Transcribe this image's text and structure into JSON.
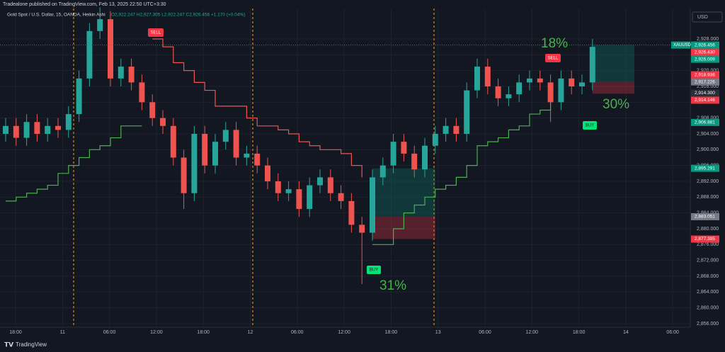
{
  "header": {
    "publisher": "Tradealone published on TradingView.com, Feb 13, 2025 22:50 UTC+3:30",
    "footer": "TradingView",
    "currency": "USD"
  },
  "chart_data": {
    "type": "candlestick",
    "symbol": "Gold Spot / U.S. Dollar, 15, OANDA, Heikin Ashi",
    "ohlc_text": "O2,922.247 H2,927.305 L2,922.247 C2,926.456 +1.170 (+0.04%)",
    "ylim": [
      2855.1,
      2935.7
    ],
    "yticks": [
      {
        "value": 2856,
        "label": "2,856.000"
      },
      {
        "value": 2860,
        "label": "2,860.000"
      },
      {
        "value": 2864,
        "label": "2,864.000"
      },
      {
        "value": 2868,
        "label": "2,868.000"
      },
      {
        "value": 2872,
        "label": "2,872.000"
      },
      {
        "value": 2876,
        "label": "2,876.000"
      },
      {
        "value": 2880,
        "label": "2,880.000"
      },
      {
        "value": 2884,
        "label": "2,884.000"
      },
      {
        "value": 2888,
        "label": "2,888.000"
      },
      {
        "value": 2892,
        "label": "2,892.000"
      },
      {
        "value": 2896,
        "label": "2,896.000"
      },
      {
        "value": 2900,
        "label": "2,900.000"
      },
      {
        "value": 2904,
        "label": "2,904.000"
      },
      {
        "value": 2908,
        "label": "2,908.000"
      },
      {
        "value": 2912,
        "label": "2,912.000"
      },
      {
        "value": 2916,
        "label": "2,916.000"
      },
      {
        "value": 2920,
        "label": "2,920.000"
      },
      {
        "value": 2924,
        "label": "2,924.000"
      },
      {
        "value": 2928,
        "label": "2,928.000"
      }
    ],
    "time_labels": [
      "18:00",
      "11",
      "06:00",
      "12:00",
      "18:00",
      "12",
      "06:00",
      "12:00",
      "18:00",
      "13",
      "06:00",
      "12:00",
      "18:00",
      "14",
      "06:00"
    ],
    "up_color": "#26a69a",
    "down_color": "#ef5350",
    "candles": [
      [
        2904,
        2908,
        2902,
        2906
      ],
      [
        2906,
        2908,
        2901,
        2903
      ],
      [
        2903,
        2909,
        2901,
        2907
      ],
      [
        2907,
        2909,
        2902,
        2904
      ],
      [
        2904,
        2908,
        2902,
        2906
      ],
      [
        2906,
        2908,
        2903,
        2905
      ],
      [
        2905,
        2911,
        2903,
        2909
      ],
      [
        2909,
        2920,
        2907,
        2918
      ],
      [
        2918,
        2932,
        2916,
        2930
      ],
      [
        2930,
        2936,
        2928,
        2933
      ],
      [
        2933,
        2935,
        2916,
        2918
      ],
      [
        2918,
        2923,
        2916,
        2921
      ],
      [
        2921,
        2923,
        2915,
        2917
      ],
      [
        2917,
        2919,
        2910,
        2912
      ],
      [
        2912,
        2914,
        2906,
        2908
      ],
      [
        2908,
        2910,
        2904,
        2906
      ],
      [
        2906,
        2908,
        2896,
        2898
      ],
      [
        2898,
        2900,
        2885,
        2889
      ],
      [
        2889,
        2906,
        2887,
        2904
      ],
      [
        2904,
        2906,
        2894,
        2896
      ],
      [
        2896,
        2904,
        2894,
        2902
      ],
      [
        2902,
        2907,
        2900,
        2905
      ],
      [
        2905,
        2907,
        2896,
        2898
      ],
      [
        2898,
        2901,
        2896,
        2899
      ],
      [
        2899,
        2901,
        2894,
        2896
      ],
      [
        2896,
        2898,
        2890,
        2892
      ],
      [
        2892,
        2894,
        2887,
        2889
      ],
      [
        2889,
        2892,
        2887,
        2890
      ],
      [
        2890,
        2892,
        2883,
        2885
      ],
      [
        2885,
        2893,
        2883,
        2891
      ],
      [
        2891,
        2895,
        2889,
        2893
      ],
      [
        2893,
        2895,
        2887,
        2889
      ],
      [
        2889,
        2891,
        2885,
        2887
      ],
      [
        2887,
        2889,
        2879,
        2881
      ],
      [
        2881,
        2883,
        2866,
        2879
      ],
      [
        2879,
        2895,
        2877,
        2893
      ],
      [
        2893,
        2898,
        2891,
        2896
      ],
      [
        2896,
        2904,
        2894,
        2902
      ],
      [
        2902,
        2904,
        2897,
        2899
      ],
      [
        2899,
        2901,
        2893,
        2895
      ],
      [
        2895,
        2903,
        2893,
        2901
      ],
      [
        2901,
        2906,
        2899,
        2904
      ],
      [
        2904,
        2908,
        2902,
        2906
      ],
      [
        2906,
        2908,
        2902,
        2904
      ],
      [
        2904,
        2917,
        2902,
        2915
      ],
      [
        2915,
        2923,
        2913,
        2921
      ],
      [
        2921,
        2923,
        2914,
        2916
      ],
      [
        2916,
        2918,
        2911,
        2913
      ],
      [
        2913,
        2916,
        2911,
        2914
      ],
      [
        2914,
        2919,
        2912,
        2917
      ],
      [
        2917,
        2920,
        2915,
        2918
      ],
      [
        2918,
        2920,
        2915,
        2917
      ],
      [
        2917,
        2919,
        2907,
        2912
      ],
      [
        2912,
        2920,
        2910,
        2918
      ],
      [
        2918,
        2920,
        2914,
        2916
      ],
      [
        2916,
        2919,
        2914,
        2917
      ],
      [
        2917,
        2928,
        2915,
        2926
      ]
    ],
    "series": [
      {
        "name": "trail-sell",
        "color": "#ef5350",
        "values": [
          null,
          null,
          null,
          null,
          null,
          null,
          null,
          null,
          null,
          null,
          null,
          null,
          null,
          null,
          2928,
          2926,
          2922,
          2920,
          2917,
          2915,
          2911,
          2911,
          2911,
          2908,
          2906,
          2906,
          2905,
          2904,
          2902,
          2901,
          2900,
          2900,
          2899,
          2896,
          2893,
          null,
          null,
          null,
          null,
          null,
          null,
          null,
          null,
          null,
          null,
          null,
          null,
          null,
          null,
          null,
          null,
          null,
          null,
          null,
          null,
          null,
          null
        ]
      },
      {
        "name": "trail-buy",
        "color": "#4caf50",
        "values": [
          2887,
          2888,
          2889,
          2890,
          2891,
          2894,
          2896,
          2898,
          2900,
          2901,
          2903,
          2906,
          2906,
          2906,
          null,
          null,
          null,
          null,
          null,
          null,
          null,
          null,
          null,
          null,
          null,
          null,
          null,
          null,
          null,
          null,
          null,
          null,
          null,
          null,
          null,
          2876,
          2876,
          2880,
          2884,
          2886,
          2888,
          2890,
          2891,
          2893,
          2896,
          2901,
          2902,
          2903,
          2905,
          2906,
          2909,
          2910,
          2912,
          null,
          null,
          null,
          null
        ]
      }
    ],
    "positions": [
      {
        "start": 35,
        "bars": 6,
        "entry": 2883.051,
        "target": 2895.291,
        "stop": 2877.395
      },
      {
        "start": 56,
        "bars": 4,
        "entry": 2917.226,
        "target": 2926.456,
        "stop": 2914.146
      }
    ],
    "price_labels": [
      {
        "value": 2926.456,
        "label": "2,926.456",
        "color": "#089981",
        "tag": "XAUUSD"
      },
      {
        "value": 2926.43,
        "label": "2,926.430",
        "color": "#f23645"
      },
      {
        "value": 2926.009,
        "label": "2,926.009",
        "color": "#089981"
      },
      {
        "value": 2918.936,
        "label": "2,918.936",
        "color": "#f23645"
      },
      {
        "value": 2917.226,
        "label": "2,917.226",
        "color": "#787b86"
      },
      {
        "value": 2914.3,
        "label": "2,914.300",
        "color": "#2a2e39"
      },
      {
        "value": 2914.146,
        "label": "2,914.146",
        "color": "#f23645"
      },
      {
        "value": 2906.881,
        "label": "2,906.881",
        "color": "#089981"
      },
      {
        "value": 2895.291,
        "label": "2,895.291",
        "color": "#089981"
      },
      {
        "value": 2883.051,
        "label": "2,883.051",
        "color": "#787b86"
      },
      {
        "value": 2877.395,
        "label": "2,877.395",
        "color": "#f23645"
      }
    ],
    "annotations": [
      "SELL",
      "SELL",
      "BUY",
      "BUY",
      "18%",
      "30%",
      "31%"
    ]
  }
}
